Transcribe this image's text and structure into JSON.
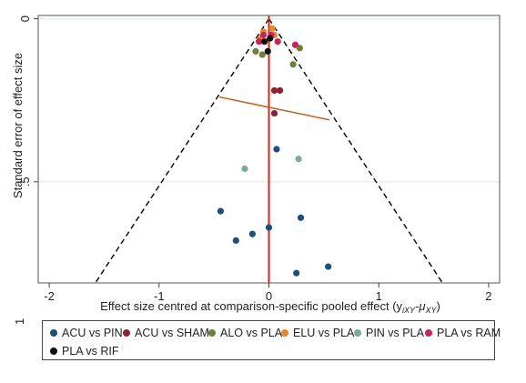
{
  "chart_data": {
    "type": "scatter",
    "title": "",
    "xlabel": "Effect size centred at comparison-specific pooled effect (y",
    "xlabel_sub": "iXY",
    "xlabel_mid": "-μ",
    "xlabel_sub2": "XY",
    "xlabel_end": ")",
    "ylabel": "Standard error of effect size",
    "xlim": [
      -2.1,
      2.1
    ],
    "ylim": [
      -0.01,
      0.81
    ],
    "y_reversed": true,
    "x_ticks": [
      "-2",
      "-1",
      "0",
      "1",
      "2"
    ],
    "x_tick_values": [
      -2,
      -1,
      0,
      1,
      2
    ],
    "y_ticks": [
      "0",
      ".5"
    ],
    "y_tick_values": [
      0,
      0.5
    ],
    "grid": true,
    "legend_position": "bottom",
    "series": [
      {
        "name": "ACU vs PIN",
        "color": "#1f4e79",
        "points": [
          [
            0.07,
            0.4
          ],
          [
            -0.44,
            0.59
          ],
          [
            0.29,
            0.61
          ],
          [
            0.0,
            0.64
          ],
          [
            -0.15,
            0.66
          ],
          [
            -0.3,
            0.68
          ],
          [
            0.54,
            0.76
          ],
          [
            0.25,
            0.78
          ]
        ]
      },
      {
        "name": "ACU vs SHAM",
        "color": "#8b2232",
        "points": [
          [
            0.05,
            0.22
          ],
          [
            0.1,
            0.22
          ],
          [
            0.05,
            0.29
          ]
        ]
      },
      {
        "name": "ALO vs PLA",
        "color": "#6e7f3a",
        "points": [
          [
            -0.06,
            0.11
          ],
          [
            0.22,
            0.14
          ],
          [
            -0.12,
            0.1
          ],
          [
            0.28,
            0.09
          ]
        ]
      },
      {
        "name": "ELU vs PLA",
        "color": "#e8882a",
        "points": [
          [
            -0.05,
            0.04
          ],
          [
            0.05,
            0.05
          ],
          [
            -0.08,
            0.06
          ],
          [
            0.03,
            0.03
          ]
        ]
      },
      {
        "name": "PIN vs PLA",
        "color": "#7aa89a",
        "points": [
          [
            -0.22,
            0.46
          ],
          [
            0.27,
            0.43
          ]
        ]
      },
      {
        "name": "PLA vs RAM",
        "color": "#c8245a",
        "points": [
          [
            -0.09,
            0.07
          ],
          [
            0.24,
            0.08
          ],
          [
            0.08,
            0.07
          ],
          [
            -0.05,
            0.05
          ],
          [
            0.02,
            0.05
          ]
        ]
      },
      {
        "name": "PLA vs RIF",
        "color": "#111111",
        "points": [
          [
            0.01,
            0.06
          ],
          [
            -0.01,
            0.1
          ],
          [
            -0.04,
            0.07
          ]
        ]
      }
    ],
    "regression_line": {
      "points": [
        [
          -0.45,
          0.24
        ],
        [
          0.55,
          0.31
        ]
      ],
      "color": "#c0622a"
    },
    "funnel_limits": {
      "apex": [
        0,
        0
      ],
      "bottom_left": [
        -1.58,
        0.81
      ],
      "bottom_right": [
        1.58,
        0.81
      ]
    },
    "reference_line": {
      "x": 0,
      "color": "#e0201b"
    },
    "side_label": "1"
  }
}
